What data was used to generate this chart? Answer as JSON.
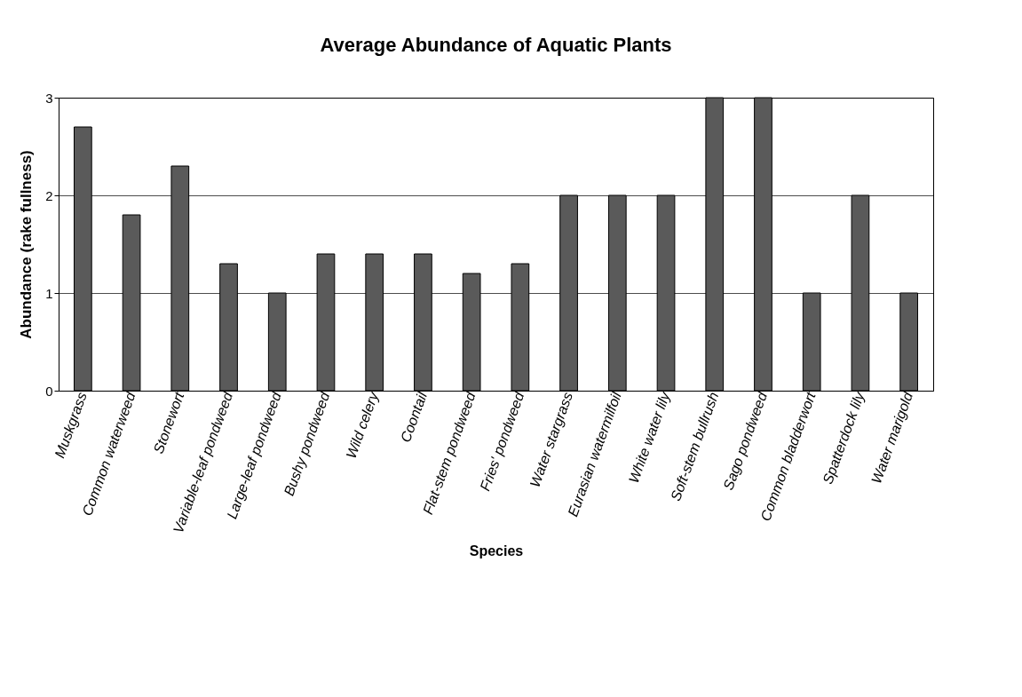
{
  "chart_data": {
    "type": "bar",
    "title": "Average Abundance of Aquatic Plants",
    "xlabel": "Species",
    "ylabel": "Abundance (rake fullness)",
    "categories": [
      "Muskgrass",
      "Common waterweed",
      "Stonewort",
      "Variable-leaf pondweed",
      "Large-leaf pondweed",
      "Bushy pondweed",
      "Wild celery",
      "Coontail",
      "Flat-stem pondweed",
      "Fries' pondweed",
      "Water stargrass",
      "Eurasian watermilfoil",
      "White water lily",
      "Soft-stem bullrush",
      "Sago pondweed",
      "Common bladderwort",
      "Spatterdock lily",
      "Water marigold"
    ],
    "values": [
      2.7,
      1.8,
      2.3,
      1.3,
      1.0,
      1.4,
      1.4,
      1.4,
      1.2,
      1.3,
      2.0,
      2.0,
      2.0,
      3.0,
      3.0,
      1.0,
      2.0,
      1.0
    ],
    "color": "#5a5a5a",
    "ylim": [
      0,
      3
    ],
    "yticks": [
      0,
      1,
      2,
      3
    ],
    "grid": "y",
    "legend": false
  }
}
